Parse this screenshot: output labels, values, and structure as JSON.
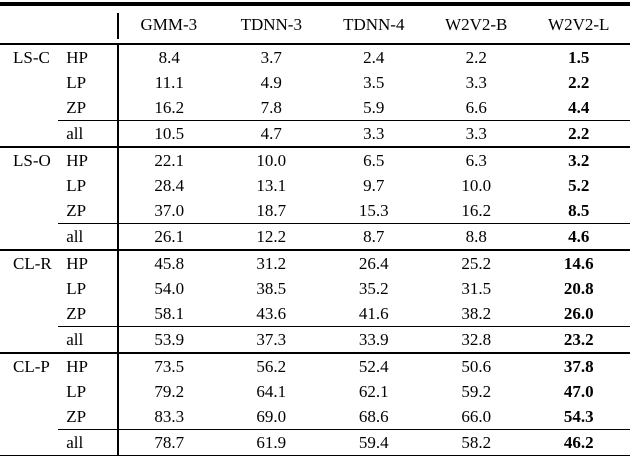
{
  "colors": {
    "text": "#000000",
    "background": "#ffffff",
    "rule": "#000000"
  },
  "table": {
    "columns": [
      "GMM-3",
      "TDNN-3",
      "TDNN-4",
      "W2V2-B",
      "W2V2-L"
    ],
    "emphasized_column": "W2V2-L",
    "row_types": [
      "HP",
      "LP",
      "ZP",
      "all"
    ],
    "groups": [
      {
        "label": "LS-C",
        "rows": [
          {
            "label": "HP",
            "values": [
              "8.4",
              "3.7",
              "2.4",
              "2.2",
              "1.5"
            ]
          },
          {
            "label": "LP",
            "values": [
              "11.1",
              "4.9",
              "3.5",
              "3.3",
              "2.2"
            ]
          },
          {
            "label": "ZP",
            "values": [
              "16.2",
              "7.8",
              "5.9",
              "6.6",
              "4.4"
            ]
          },
          {
            "label": "all",
            "values": [
              "10.5",
              "4.7",
              "3.3",
              "3.3",
              "2.2"
            ]
          }
        ]
      },
      {
        "label": "LS-O",
        "rows": [
          {
            "label": "HP",
            "values": [
              "22.1",
              "10.0",
              "6.5",
              "6.3",
              "3.2"
            ]
          },
          {
            "label": "LP",
            "values": [
              "28.4",
              "13.1",
              "9.7",
              "10.0",
              "5.2"
            ]
          },
          {
            "label": "ZP",
            "values": [
              "37.0",
              "18.7",
              "15.3",
              "16.2",
              "8.5"
            ]
          },
          {
            "label": "all",
            "values": [
              "26.1",
              "12.2",
              "8.7",
              "8.8",
              "4.6"
            ]
          }
        ]
      },
      {
        "label": "CL-R",
        "rows": [
          {
            "label": "HP",
            "values": [
              "45.8",
              "31.2",
              "26.4",
              "25.2",
              "14.6"
            ]
          },
          {
            "label": "LP",
            "values": [
              "54.0",
              "38.5",
              "35.2",
              "31.5",
              "20.8"
            ]
          },
          {
            "label": "ZP",
            "values": [
              "58.1",
              "43.6",
              "41.6",
              "38.2",
              "26.0"
            ]
          },
          {
            "label": "all",
            "values": [
              "53.9",
              "37.3",
              "33.9",
              "32.8",
              "23.2"
            ]
          }
        ]
      },
      {
        "label": "CL-P",
        "rows": [
          {
            "label": "HP",
            "values": [
              "73.5",
              "56.2",
              "52.4",
              "50.6",
              "37.8"
            ]
          },
          {
            "label": "LP",
            "values": [
              "79.2",
              "64.1",
              "62.1",
              "59.2",
              "47.0"
            ]
          },
          {
            "label": "ZP",
            "values": [
              "83.3",
              "69.0",
              "68.6",
              "66.0",
              "54.3"
            ]
          },
          {
            "label": "all",
            "values": [
              "78.7",
              "61.9",
              "59.4",
              "58.2",
              "46.2"
            ]
          }
        ]
      }
    ]
  }
}
